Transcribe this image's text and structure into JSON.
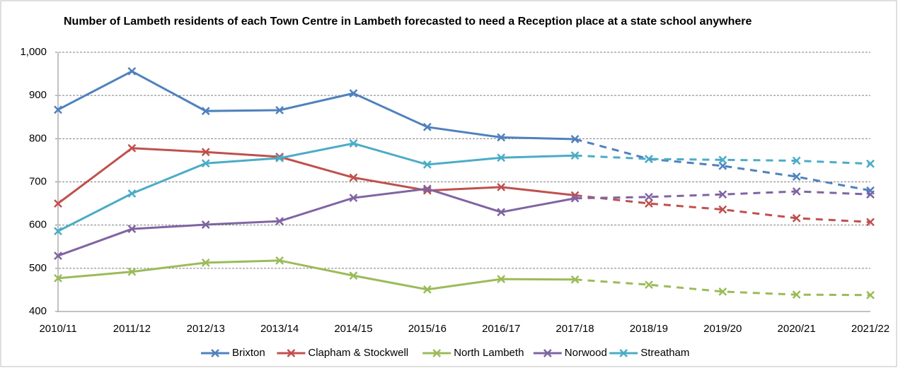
{
  "chart_data": {
    "type": "line",
    "title": "Number of Lambeth residents of each Town Centre in Lambeth forecasted to need a Reception place at a state school anywhere",
    "categories": [
      "2010/11",
      "2011/12",
      "2012/13",
      "2013/14",
      "2014/15",
      "2015/16",
      "2016/17",
      "2017/18",
      "2018/19",
      "2019/20",
      "2020/21",
      "2021/22"
    ],
    "dashed_from": "2017/18",
    "series": [
      {
        "name": "Brixton",
        "color": "#4f81bd",
        "values": [
          867,
          956,
          864,
          866,
          905,
          827,
          803,
          799,
          753,
          737,
          712,
          680
        ]
      },
      {
        "name": "Clapham & Stockwell",
        "color": "#c0504d",
        "values": [
          650,
          778,
          769,
          758,
          710,
          680,
          688,
          669,
          650,
          636,
          616,
          607
        ]
      },
      {
        "name": "North Lambeth",
        "color": "#9bbb59",
        "values": [
          477,
          492,
          513,
          518,
          483,
          451,
          475,
          474,
          462,
          446,
          439,
          438
        ]
      },
      {
        "name": "Norwood",
        "color": "#8064a2",
        "values": [
          529,
          591,
          601,
          609,
          663,
          684,
          630,
          662,
          665,
          671,
          678,
          671
        ]
      },
      {
        "name": "Streatham",
        "color": "#4bacc6",
        "values": [
          586,
          673,
          743,
          755,
          789,
          740,
          756,
          761,
          753,
          751,
          749,
          742
        ]
      }
    ],
    "ylim": [
      400,
      1000
    ],
    "yticks": [
      400,
      500,
      600,
      700,
      800,
      900,
      {
        "value": 1000,
        "label": "1,000"
      }
    ],
    "grid": true,
    "legend": "bottom"
  }
}
